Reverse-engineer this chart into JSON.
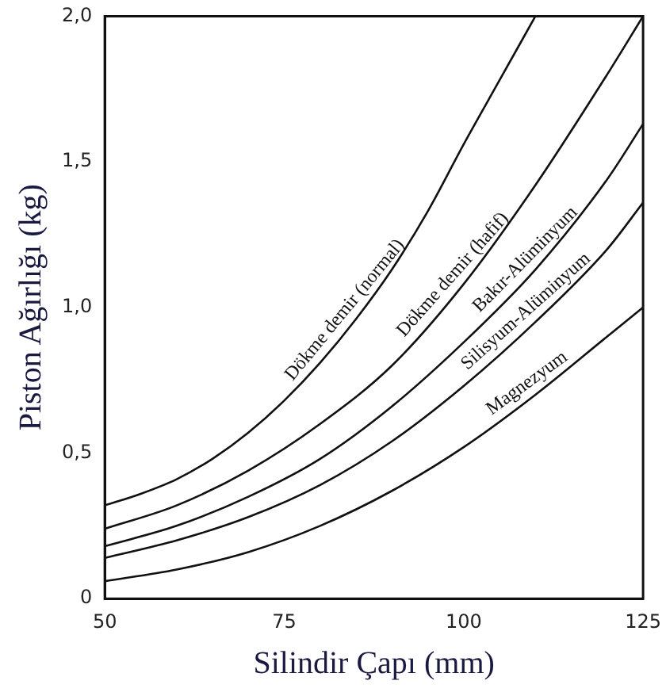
{
  "chart_data": {
    "type": "line",
    "xlabel": "Silindir Çapı (mm)",
    "ylabel": "Piston Ağırlığı (kg)",
    "x": [
      50,
      60,
      70,
      80,
      90,
      100,
      110,
      120,
      125
    ],
    "xlim": [
      50,
      125
    ],
    "xticks": [
      50,
      75,
      100,
      125
    ],
    "ylim": [
      0,
      2
    ],
    "yticks": [
      0,
      {
        "value": 0.5,
        "label": "0,5"
      },
      {
        "value": 1,
        "label": "1,0"
      },
      {
        "value": 1.5,
        "label": "1,5"
      },
      {
        "value": 2,
        "label": "2,0"
      }
    ],
    "grid": false,
    "legend": false,
    "marker": "none",
    "line_style": "solid",
    "series": [
      {
        "color": "#111111",
        "x": [
          50,
          55,
          60,
          65,
          70,
          75,
          80,
          85,
          90,
          95,
          100,
          105,
          110
        ],
        "values": [
          0.32,
          0.36,
          0.41,
          0.48,
          0.57,
          0.68,
          0.81,
          0.96,
          1.13,
          1.33,
          1.56,
          1.78,
          2.0
        ]
      },
      {
        "color": "#111111",
        "values": [
          0.24,
          0.32,
          0.44,
          0.6,
          0.8,
          1.08,
          1.42,
          1.8,
          2.0
        ]
      },
      {
        "color": "#111111",
        "values": [
          0.18,
          0.25,
          0.35,
          0.48,
          0.66,
          0.88,
          1.13,
          1.44,
          1.63
        ]
      },
      {
        "color": "#111111",
        "values": [
          0.14,
          0.2,
          0.28,
          0.39,
          0.54,
          0.73,
          0.95,
          1.2,
          1.36
        ]
      },
      {
        "color": "#111111",
        "values": [
          0.06,
          0.1,
          0.16,
          0.25,
          0.37,
          0.52,
          0.7,
          0.9,
          1.0
        ]
      }
    ],
    "annotations": [
      {
        "text": "Dökme demir (normal)",
        "x": 85,
        "y": 0.96
      },
      {
        "text": "Dökme demir (hafif)",
        "x": 100,
        "y": 1.08
      },
      {
        "text": "Bakır-Alüminyum",
        "x": 110,
        "y": 1.13
      },
      {
        "text": "Silisyum-Alüminyum",
        "x": 110,
        "y": 0.95
      },
      {
        "text": "Magnezyum",
        "x": 110,
        "y": 0.7
      }
    ]
  }
}
